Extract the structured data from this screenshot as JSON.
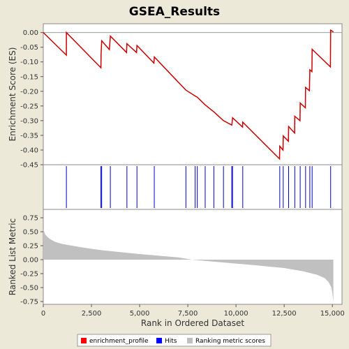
{
  "chart_data": {
    "title": "GSEA_Results",
    "xlabel": "Rank in Ordered Dataset",
    "x_ticks": [
      0,
      2500,
      5000,
      7500,
      10000,
      12500,
      15000
    ],
    "x_tick_labels": [
      "0",
      "2,500",
      "5,000",
      "7,500",
      "10,000",
      "12,500",
      "15,000"
    ],
    "xlim": [
      0,
      15500
    ],
    "panels": [
      {
        "type": "line",
        "name": "enrichment_score",
        "ylabel": "Enrichment Score (ES)",
        "ylim": [
          -0.45,
          0.03
        ],
        "y_ticks": [
          0.0,
          -0.05,
          -0.1,
          -0.15,
          -0.2,
          -0.25,
          -0.3,
          -0.35,
          -0.4,
          -0.45
        ],
        "y_tick_labels": [
          "0.00",
          "-0.05",
          "-0.10",
          "-0.15",
          "-0.20",
          "-0.25",
          "-0.30",
          "-0.35",
          "-0.40",
          "-0.45"
        ],
        "zero_line": true,
        "x": [
          0,
          1200,
          1200,
          2990,
          3000,
          3030,
          3430,
          3480,
          4320,
          4340,
          4840,
          4860,
          5740,
          5760,
          7400,
          7880,
          7990,
          8400,
          8850,
          9350,
          9780,
          9820,
          10340,
          10350,
          12260,
          12270,
          12440,
          12450,
          12720,
          12730,
          13040,
          13050,
          13320,
          13330,
          13600,
          13610,
          13810,
          13830,
          13940,
          13950,
          14900,
          14910,
          15050
        ],
        "y": [
          0.0,
          -0.077,
          0.0,
          -0.12,
          -0.075,
          -0.028,
          -0.058,
          -0.012,
          -0.068,
          -0.038,
          -0.068,
          -0.044,
          -0.104,
          -0.083,
          -0.196,
          -0.216,
          -0.22,
          -0.246,
          -0.27,
          -0.3,
          -0.315,
          -0.29,
          -0.322,
          -0.305,
          -0.43,
          -0.387,
          -0.4,
          -0.352,
          -0.37,
          -0.32,
          -0.342,
          -0.285,
          -0.3,
          -0.24,
          -0.256,
          -0.187,
          -0.198,
          -0.127,
          -0.133,
          -0.057,
          -0.117,
          0.008,
          0.002
        ]
      },
      {
        "type": "hits",
        "name": "Hits",
        "positions": [
          1200,
          2990,
          3030,
          3480,
          4340,
          4860,
          5760,
          7400,
          7880,
          7990,
          8400,
          8850,
          9350,
          9780,
          9820,
          10350,
          12270,
          12450,
          12730,
          13050,
          13330,
          13610,
          13830,
          13950,
          14910
        ]
      },
      {
        "type": "area",
        "name": "Ranking metric scores",
        "ylabel": "Ranked List Metric",
        "ylim": [
          -0.8,
          0.9
        ],
        "y_ticks": [
          0.75,
          0.5,
          0.25,
          0.0,
          -0.25,
          -0.5,
          -0.75
        ],
        "y_tick_labels": [
          "0.75",
          "0.50",
          "0.25",
          "0.00",
          "-0.25",
          "-0.50",
          "-0.75"
        ],
        "x": [
          0,
          100,
          300,
          600,
          1000,
          2000,
          3000,
          5000,
          7000,
          7700,
          9000,
          11000,
          12500,
          13500,
          14200,
          14600,
          14800,
          14950,
          15000,
          15050
        ],
        "y": [
          0.55,
          0.45,
          0.38,
          0.32,
          0.28,
          0.22,
          0.17,
          0.1,
          0.04,
          0.0,
          -0.04,
          -0.1,
          -0.15,
          -0.21,
          -0.27,
          -0.33,
          -0.4,
          -0.5,
          -0.6,
          -0.76
        ]
      }
    ],
    "legend": {
      "position": "bottom",
      "entries": [
        {
          "label": "enrichment_profile",
          "color": "#ff0000"
        },
        {
          "label": "Hits",
          "color": "#0000ff"
        },
        {
          "label": "Ranking metric scores",
          "color": "#c0c0c0"
        }
      ]
    },
    "colors": {
      "profile": "#cc0000",
      "hits": "#0000cc",
      "metric": "#c0c0c0",
      "plot_bg": "#ffffff",
      "page_bg": "#ece9d8"
    }
  }
}
